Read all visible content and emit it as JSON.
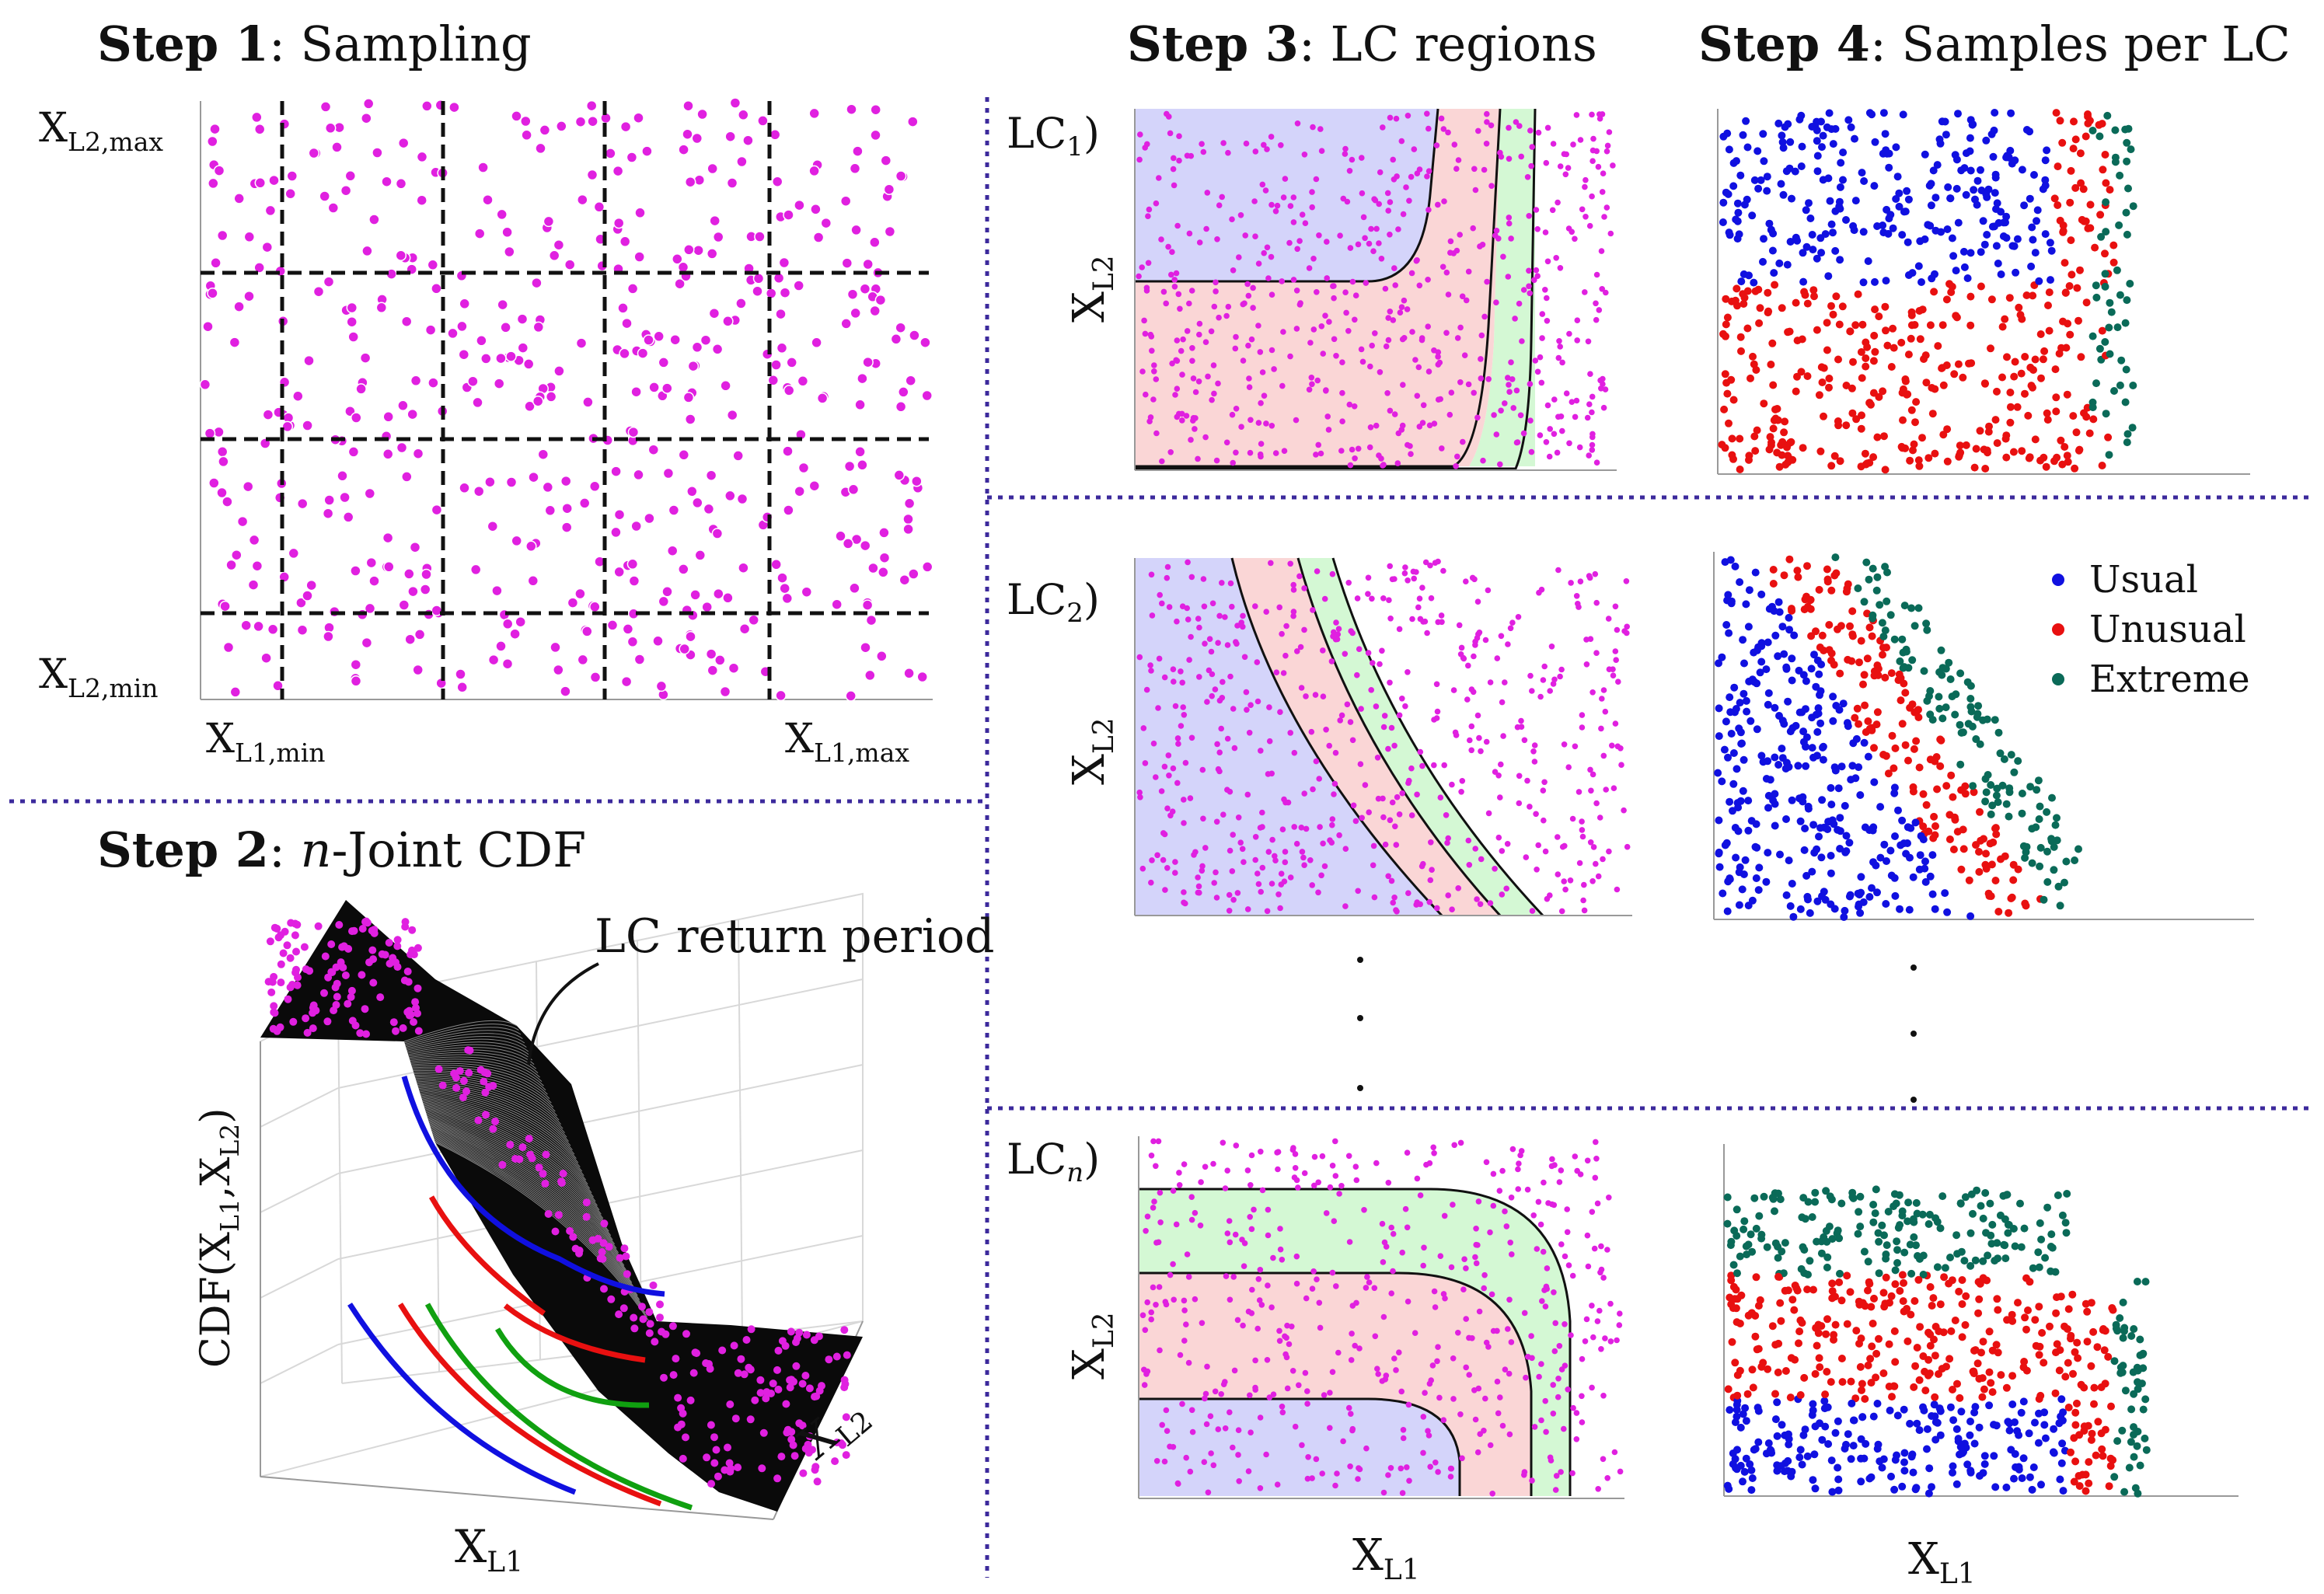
{
  "colors": {
    "magenta": "#e020e0",
    "usual": "#1010e0",
    "unusual": "#e81010",
    "extreme": "#0a6a58",
    "region_usual": "#d4d4fa",
    "region_unusual": "#fad6d6",
    "region_extreme": "#d4f8d4",
    "divider": "#3c2a9c",
    "surface": "#0a0a0a"
  },
  "step1": {
    "title_bold": "Step 1",
    "title_rest": ": Sampling",
    "y_max_label": "X",
    "y_max_sub": "L2,max",
    "y_min_label": "X",
    "y_min_sub": "L2,min",
    "x_min_label": "X",
    "x_min_sub": "L1,min",
    "x_max_label": "X",
    "x_max_sub": "L1,max"
  },
  "step2": {
    "title_bold": "Step 2",
    "title_rest_italic": "n",
    "title_rest": "-Joint CDF",
    "annotation": "LC return period",
    "z_label_prefix": "CDF(X",
    "z_sub1": "L1",
    "z_mid": ",X",
    "z_sub2": "L2",
    "z_suffix": ")",
    "x_label": "X",
    "x_sub": "L1",
    "y_label": "X",
    "y_sub": "L2"
  },
  "step3": {
    "title_bold": "Step 3",
    "title_rest": ": LC regions",
    "lc1_base": "LC",
    "lc1_sub": "1",
    "lc2_base": "LC",
    "lc2_sub": "2",
    "lcn_base": "LC",
    "lcn_sub": "n",
    "close": ")",
    "axis_y": "X",
    "axis_y_sub": "L2",
    "axis_x": "X",
    "axis_x_sub": "L1",
    "ellipsis": "·"
  },
  "step4": {
    "title_bold": "Step 4",
    "title_rest": ": Samples per LC",
    "legend": [
      "Usual",
      "Unusual",
      "Extreme"
    ],
    "axis_x": "X",
    "axis_x_sub": "L1"
  }
}
